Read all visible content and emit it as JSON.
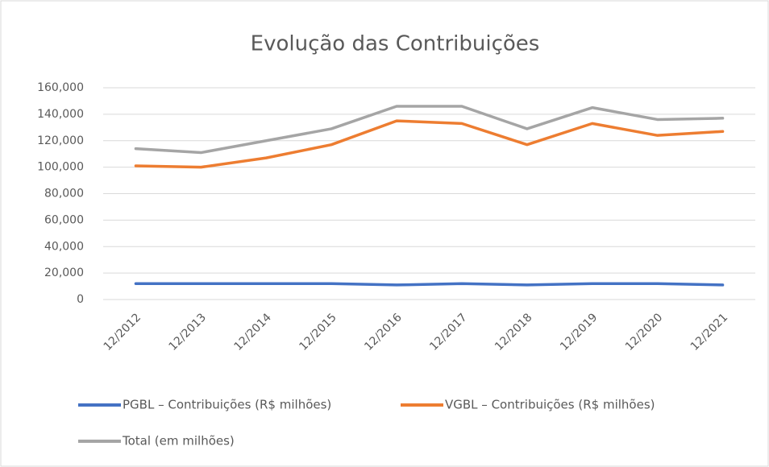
{
  "chart_data": {
    "type": "line",
    "title": "Evolução das Contribuições",
    "categories": [
      "12/2012",
      "12/2013",
      "12/2014",
      "12/2015",
      "12/2016",
      "12/2017",
      "12/2018",
      "12/2019",
      "12/2020",
      "12/2021"
    ],
    "series": [
      {
        "name": "PGBL – Contribuições (R$ milhões)",
        "color": "#4472c4",
        "values": [
          12000,
          12000,
          12000,
          12000,
          11000,
          12000,
          11000,
          12000,
          12000,
          11000
        ]
      },
      {
        "name": "VGBL – Contribuições (R$ milhões)",
        "color": "#ed7d31",
        "values": [
          101000,
          100000,
          107000,
          117000,
          135000,
          133000,
          117000,
          133000,
          124000,
          127000
        ]
      },
      {
        "name": "Total (em milhões)",
        "color": "#a5a5a5",
        "values": [
          114000,
          111000,
          120000,
          129000,
          146000,
          146000,
          129000,
          145000,
          136000,
          137000
        ]
      }
    ],
    "ylim": [
      0,
      160000
    ],
    "yticks": [
      0,
      {
        "value": 20000,
        "label": "20,000"
      },
      {
        "value": 40000,
        "label": "40,000"
      },
      {
        "value": 60000,
        "label": "60,000"
      },
      {
        "value": 80000,
        "label": "80,000"
      },
      {
        "value": 100000,
        "label": "100,000"
      },
      {
        "value": 120000,
        "label": "120,000"
      },
      {
        "value": 140000,
        "label": "140,000"
      },
      {
        "value": 160000,
        "label": "160,000"
      }
    ],
    "grid": true,
    "legend": "bottom"
  }
}
